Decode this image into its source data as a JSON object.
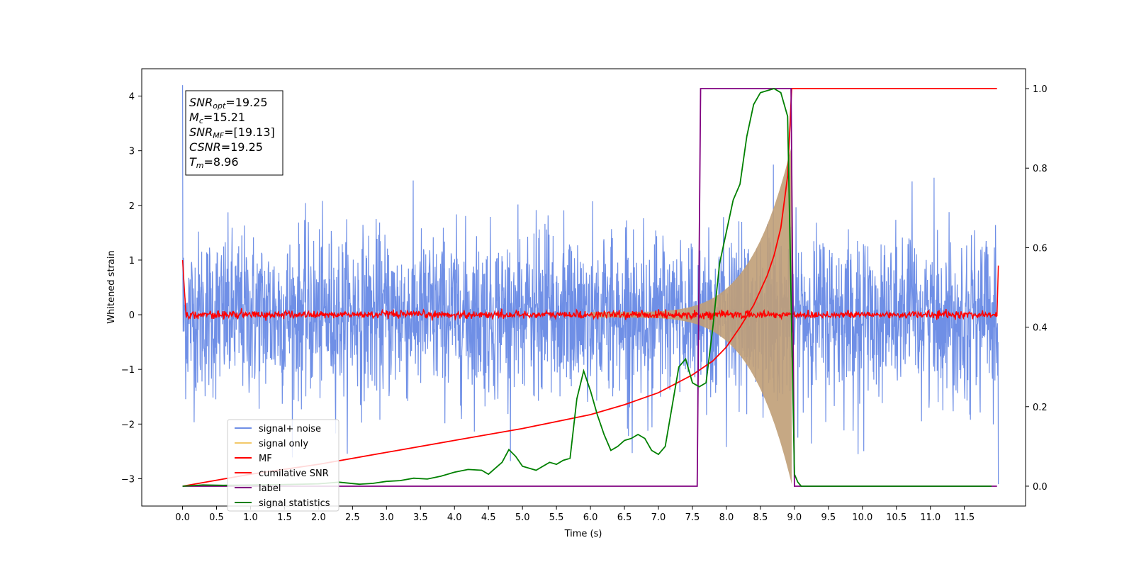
{
  "chart_data": {
    "type": "line",
    "title": "",
    "xlabel": "Time (s)",
    "ylabel": "Whitened strain",
    "xlim": [
      -0.6,
      12.4
    ],
    "ylim": [
      -3.5,
      4.5
    ],
    "y2lim": [
      -0.05,
      1.05
    ],
    "grid": false,
    "legend_position": "lower-left",
    "x_ticks": [
      "0.0",
      "0.5",
      "1.0",
      "1.5",
      "2.0",
      "2.5",
      "3.0",
      "3.5",
      "4.0",
      "4.5",
      "5.0",
      "5.5",
      "6.0",
      "6.5",
      "7.0",
      "7.5",
      "8.0",
      "8.5",
      "9.0",
      "9.5",
      "10.0",
      "10.5",
      "11.0",
      "11.5"
    ],
    "y_ticks": [
      "4",
      "3",
      "2",
      "1",
      "0",
      "−1",
      "−2",
      "−3"
    ],
    "y2_ticks": [
      "1.0",
      "0.8",
      "0.6",
      "0.4",
      "0.2",
      "0.0"
    ],
    "legend": [
      "signal+ noise",
      "signal only",
      "MF",
      "cumilative SNR",
      "label",
      "signal statistics"
    ],
    "colors": {
      "signal_noise": "#6f8fe6",
      "signal_only": "#f2c96a",
      "overlap": "#c09f77",
      "mf": "#ff0000",
      "cum_snr": "#ff0000",
      "label": "#800080",
      "stats": "#008000"
    },
    "annotation": {
      "snr_opt": {
        "base": "SNR",
        "sub": "opt",
        "value": "=19.25"
      },
      "mc": {
        "base": "M",
        "sub": "c",
        "value": "=15.21"
      },
      "snr_mf": {
        "base": "SNR",
        "sub": "MF",
        "value": "=[19.13]"
      },
      "csnr": {
        "base": "CSNR",
        "sub": "",
        "value": "=19.25"
      },
      "tm": {
        "base": "T",
        "sub": "m",
        "value": "=8.96"
      }
    },
    "series": [
      {
        "name": "cumilative SNR",
        "axis": "right",
        "x": [
          0.0,
          1.0,
          2.0,
          3.0,
          4.0,
          5.0,
          6.0,
          6.5,
          7.0,
          7.5,
          7.8,
          8.0,
          8.2,
          8.4,
          8.6,
          8.7,
          8.8,
          8.9,
          8.96,
          9.0,
          11.5,
          11.98
        ],
        "y": [
          0.0,
          0.03,
          0.055,
          0.085,
          0.115,
          0.145,
          0.18,
          0.205,
          0.235,
          0.28,
          0.315,
          0.35,
          0.4,
          0.455,
          0.53,
          0.58,
          0.65,
          0.78,
          1.0,
          1.0,
          1.0,
          1.0
        ]
      },
      {
        "name": "label",
        "axis": "right",
        "x": [
          0.0,
          7.57,
          7.62,
          8.95,
          9.0,
          11.98
        ],
        "y": [
          0.0,
          0.0,
          1.0,
          1.0,
          0.0,
          0.0
        ]
      },
      {
        "name": "signal statistics",
        "axis": "right",
        "x": [
          0.0,
          0.3,
          0.6,
          1.0,
          1.5,
          2.0,
          2.3,
          2.6,
          2.8,
          3.0,
          3.2,
          3.4,
          3.6,
          3.8,
          4.0,
          4.2,
          4.4,
          4.5,
          4.6,
          4.7,
          4.8,
          4.9,
          5.0,
          5.2,
          5.4,
          5.5,
          5.6,
          5.7,
          5.8,
          5.9,
          6.0,
          6.1,
          6.2,
          6.3,
          6.4,
          6.5,
          6.6,
          6.7,
          6.8,
          6.9,
          7.0,
          7.1,
          7.2,
          7.3,
          7.4,
          7.5,
          7.6,
          7.7,
          7.8,
          7.9,
          8.0,
          8.1,
          8.2,
          8.3,
          8.4,
          8.5,
          8.6,
          8.7,
          8.8,
          8.9,
          9.0,
          9.05,
          9.1,
          9.5,
          10.5,
          11.0,
          11.5,
          11.9
        ],
        "y": [
          0.0,
          0.003,
          0.002,
          0.003,
          0.004,
          0.006,
          0.01,
          0.005,
          0.007,
          0.012,
          0.014,
          0.02,
          0.018,
          0.025,
          0.035,
          0.042,
          0.04,
          0.03,
          0.045,
          0.06,
          0.092,
          0.075,
          0.05,
          0.04,
          0.06,
          0.055,
          0.065,
          0.07,
          0.22,
          0.29,
          0.24,
          0.18,
          0.13,
          0.09,
          0.1,
          0.115,
          0.12,
          0.13,
          0.12,
          0.09,
          0.08,
          0.1,
          0.2,
          0.3,
          0.32,
          0.26,
          0.25,
          0.26,
          0.4,
          0.56,
          0.64,
          0.72,
          0.76,
          0.88,
          0.96,
          0.99,
          0.995,
          1.0,
          0.99,
          0.93,
          0.03,
          0.01,
          0.0,
          0.0,
          0.0,
          0.0,
          0.0,
          0.0
        ]
      },
      {
        "name": "MF",
        "axis": "left",
        "description_values": "baseline near 0 with small noise, spike to 1.0 at t=0 and 0.9 at t=12.0",
        "x": [
          0.0,
          0.05,
          11.98,
          12.0
        ],
        "y": [
          1.0,
          0.0,
          0.0,
          0.9
        ]
      },
      {
        "name": "signal+ noise",
        "axis": "left",
        "x": [
          0.0,
          12.0
        ],
        "amplitude_range": [
          -3.1,
          4.2
        ]
      },
      {
        "name": "signal only",
        "axis": "left",
        "x": [
          6.0,
          8.96
        ],
        "envelope_peak": 3.1
      }
    ]
  }
}
